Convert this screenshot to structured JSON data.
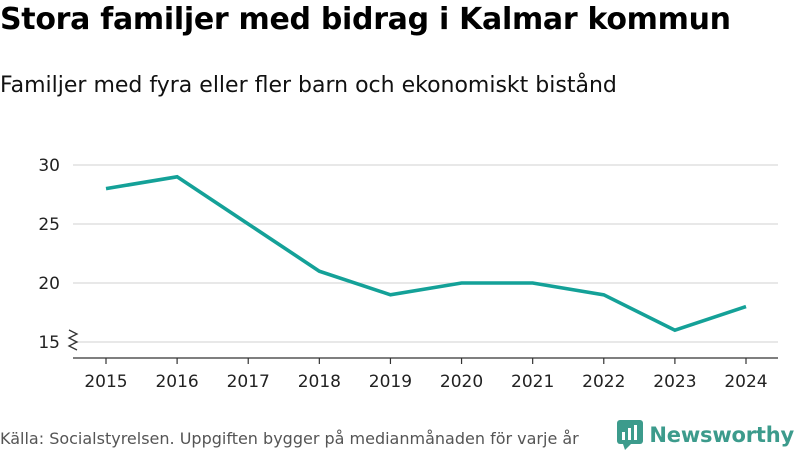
{
  "header": {
    "title": "Stora familjer med bidrag i Kalmar kommun",
    "subtitle": "Familjer med fyra eller fler barn och ekonomiskt bistånd"
  },
  "footer": {
    "source": "Källa: Socialstyrelsen. Uppgiften bygger på medianmånaden för varje år",
    "brand": "Newsworthy"
  },
  "colors": {
    "line": "#14a198",
    "grid": "#d9d9d9",
    "axis": "#333333",
    "brand": "#3c9b8c"
  },
  "icons": {
    "brand_logo": "newsworthy-logo-icon",
    "axis_break": "axis-break-icon"
  },
  "chart_data": {
    "type": "line",
    "title": "Stora familjer med bidrag i Kalmar kommun",
    "subtitle": "Familjer med fyra eller fler barn och ekonomiskt bistånd",
    "xlabel": "",
    "ylabel": "",
    "x": [
      "2015",
      "2016",
      "2017",
      "2018",
      "2019",
      "2020",
      "2021",
      "2022",
      "2023",
      "2024"
    ],
    "series": [
      {
        "name": "Familjer",
        "values": [
          28,
          29,
          25,
          21,
          19,
          20,
          20,
          19,
          16,
          18
        ]
      }
    ],
    "yticks": [
      15,
      20,
      25,
      30
    ],
    "ylim": [
      15,
      31
    ],
    "grid": true,
    "axis_break": true
  }
}
